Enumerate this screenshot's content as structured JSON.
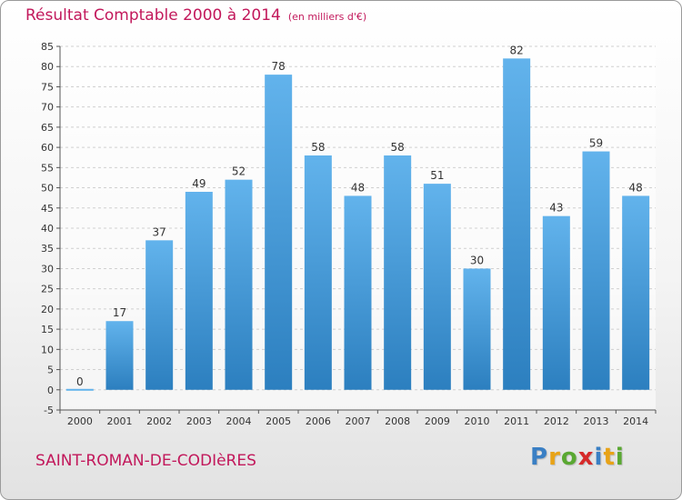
{
  "page": {
    "title": "Résultat Comptable 2000 à 2014",
    "unit": "(en milliers d'€)",
    "city": "SAINT-ROMAN-DE-CODIèRES",
    "logo_letters": [
      {
        "char": "P",
        "color": "#3a7fc4"
      },
      {
        "char": "r",
        "color": "#e8a317"
      },
      {
        "char": "o",
        "color": "#5aa832"
      },
      {
        "char": "x",
        "color": "#d62a2a"
      },
      {
        "char": "i",
        "color": "#3a7fc4"
      },
      {
        "char": "t",
        "color": "#e8a317"
      },
      {
        "char": "i",
        "color": "#5aa832"
      }
    ]
  },
  "colors": {
    "bar_light": "#62b3ec",
    "bar_dark": "#2c7fbf",
    "grid": "#d0d0d0",
    "axis": "#555555",
    "text": "#333333"
  },
  "chart_data": {
    "type": "bar",
    "title": "Résultat Comptable 2000 à 2014",
    "subtitle": "(en milliers d'€)",
    "xlabel": "",
    "ylabel": "",
    "categories": [
      "2000",
      "2001",
      "2002",
      "2003",
      "2004",
      "2005",
      "2006",
      "2007",
      "2008",
      "2009",
      "2010",
      "2011",
      "2012",
      "2013",
      "2014"
    ],
    "values": [
      0,
      17,
      37,
      49,
      52,
      78,
      58,
      48,
      58,
      51,
      30,
      82,
      43,
      59,
      48
    ],
    "ylim": [
      -5,
      85
    ],
    "ytick_step": 5,
    "grid": true,
    "data_labels": true
  }
}
